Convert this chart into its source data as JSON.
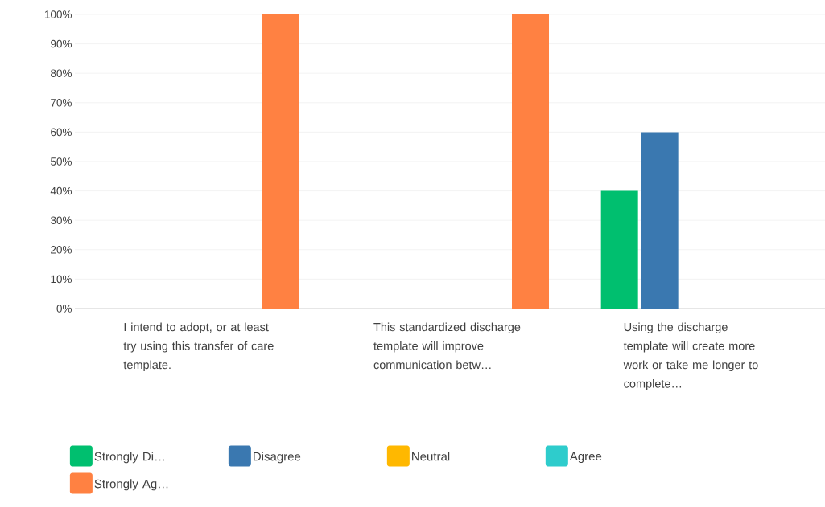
{
  "chart_data": {
    "type": "bar",
    "categories": [
      "I intend to adopt, or at least try using this transfer of care template.",
      "This standardized discharge template will improve communication betw…",
      "Using the discharge template will create more work or take me longer to complete…"
    ],
    "series": [
      {
        "name": "Strongly Di…",
        "color": "#00bf6f",
        "values": [
          0,
          0,
          40
        ]
      },
      {
        "name": "Disagree",
        "color": "#3a78b0",
        "values": [
          0,
          0,
          60
        ]
      },
      {
        "name": "Neutral",
        "color": "#ffb800",
        "values": [
          0,
          0,
          0
        ]
      },
      {
        "name": "Agree",
        "color": "#2ecccc",
        "values": [
          0,
          0,
          0
        ]
      },
      {
        "name": "Strongly Ag…",
        "color": "#ff8142",
        "values": [
          100,
          100,
          0
        ]
      }
    ],
    "ylim": [
      0,
      100
    ],
    "yticks": [
      {
        "value": 0,
        "label": "0%"
      },
      {
        "value": 10,
        "label": "10%"
      },
      {
        "value": 20,
        "label": "20%"
      },
      {
        "value": 30,
        "label": "30%"
      },
      {
        "value": 40,
        "label": "40%"
      },
      {
        "value": 50,
        "label": "50%"
      },
      {
        "value": 60,
        "label": "60%"
      },
      {
        "value": 70,
        "label": "70%"
      },
      {
        "value": 80,
        "label": "80%"
      },
      {
        "value": 90,
        "label": "90%"
      },
      {
        "value": 100,
        "label": "100%"
      }
    ],
    "grid": "y",
    "legend": "bottom"
  }
}
